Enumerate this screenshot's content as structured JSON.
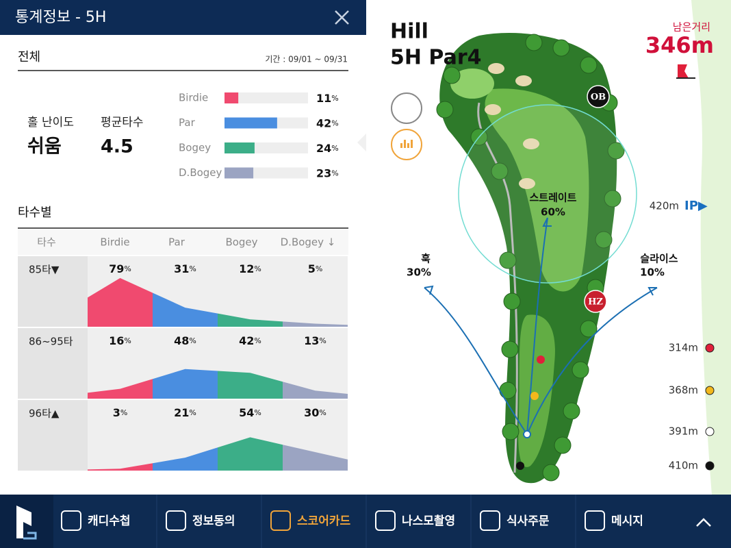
{
  "panel": {
    "title": "통계정보 - 5H"
  },
  "overall": {
    "heading": "전체",
    "period": "기간 : 09/01 ~ 09/31",
    "difficulty_label": "홀 난이도",
    "difficulty": "쉬움",
    "avg_label": "평균타수",
    "avg": 4.5,
    "unit": "%",
    "items": [
      {
        "name": "Birdie",
        "value": 11,
        "color": "#f04a6f"
      },
      {
        "name": "Par",
        "value": 42,
        "color": "#4a8ee0"
      },
      {
        "name": "Bogey",
        "value": 24,
        "color": "#3cae88"
      },
      {
        "name": "D.Bogey",
        "value": 23,
        "color": "#9ba4c2"
      }
    ]
  },
  "by_strokes": {
    "heading": "타수별",
    "unit": "%",
    "columns": [
      "타수",
      "Birdie",
      "Par",
      "Bogey",
      "D.Bogey ↓"
    ],
    "colors": [
      "#f04a6f",
      "#4a8ee0",
      "#3cae88",
      "#9ba4c2"
    ],
    "rows": [
      {
        "label": "85타▼",
        "values": [
          79,
          31,
          12,
          5
        ]
      },
      {
        "label": "86~95타",
        "values": [
          16,
          48,
          42,
          13
        ]
      },
      {
        "label": "96타▲",
        "values": [
          3,
          21,
          54,
          30
        ]
      }
    ]
  },
  "map": {
    "course": "Hill",
    "hole": "5H Par4",
    "remaining_label": "남은거리",
    "remaining": "346m",
    "hazards": [
      "OB",
      "HZ"
    ],
    "shots": [
      {
        "label": "스트레이트",
        "pct": "60%"
      },
      {
        "label": "훅",
        "pct": "30%"
      },
      {
        "label": "슬라이스",
        "pct": "10%"
      }
    ],
    "ip_distance": "420m",
    "ip_label": "IP▶",
    "tees": [
      {
        "distance": "314m",
        "color": "#e0203a"
      },
      {
        "distance": "368m",
        "color": "#f2b81c"
      },
      {
        "distance": "391m",
        "color": "#ffffff"
      },
      {
        "distance": "410m",
        "color": "#111111"
      }
    ]
  },
  "nav": {
    "items": [
      "캐디수첩",
      "정보동의",
      "스코어카드",
      "나스모촬영",
      "식사주문",
      "메시지"
    ],
    "active": 2
  }
}
